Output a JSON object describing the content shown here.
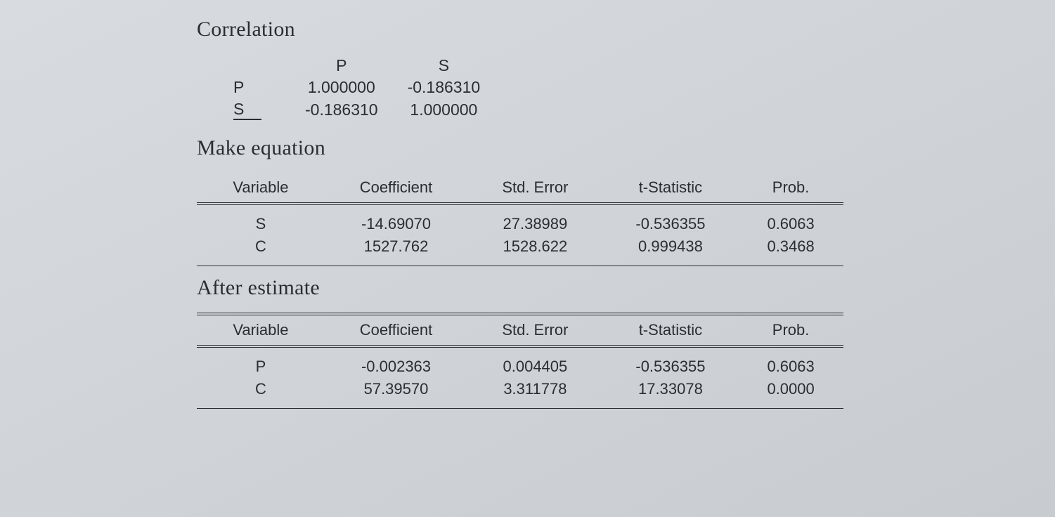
{
  "headings": {
    "correlation": "Correlation",
    "make_equation": "Make equation",
    "after_estimate": "After estimate"
  },
  "correlation_matrix": {
    "col_headers": [
      "P",
      "S"
    ],
    "row_labels": [
      "P",
      "S"
    ],
    "cells": [
      [
        "1.000000",
        "-0.186310"
      ],
      [
        "-0.186310",
        "1.000000"
      ]
    ]
  },
  "regression_columns": {
    "variable": "Variable",
    "coefficient": "Coefficient",
    "std_error": "Std. Error",
    "t_statistic": "t-Statistic",
    "prob": "Prob."
  },
  "make_equation_table": {
    "rows": [
      {
        "variable": "S",
        "coefficient": "-14.69070",
        "std_error": "27.38989",
        "t_statistic": "-0.536355",
        "prob": "0.6063"
      },
      {
        "variable": "C",
        "coefficient": "1527.762",
        "std_error": "1528.622",
        "t_statistic": "0.999438",
        "prob": "0.3468"
      }
    ]
  },
  "after_estimate_table": {
    "rows": [
      {
        "variable": "P",
        "coefficient": "-0.002363",
        "std_error": "0.004405",
        "t_statistic": "-0.536355",
        "prob": "0.6063"
      },
      {
        "variable": "C",
        "coefficient": "57.39570",
        "std_error": "3.311778",
        "t_statistic": "17.33078",
        "prob": "0.0000"
      }
    ]
  },
  "styling": {
    "background_color_top": "#d8dce0",
    "background_color_bottom": "#c8ccd0",
    "text_color": "#2a2d32",
    "heading_fontsize": 30,
    "body_fontsize": 22,
    "heading_font": "Times New Roman",
    "body_font": "Arial",
    "rule_color": "#2a2d32"
  }
}
